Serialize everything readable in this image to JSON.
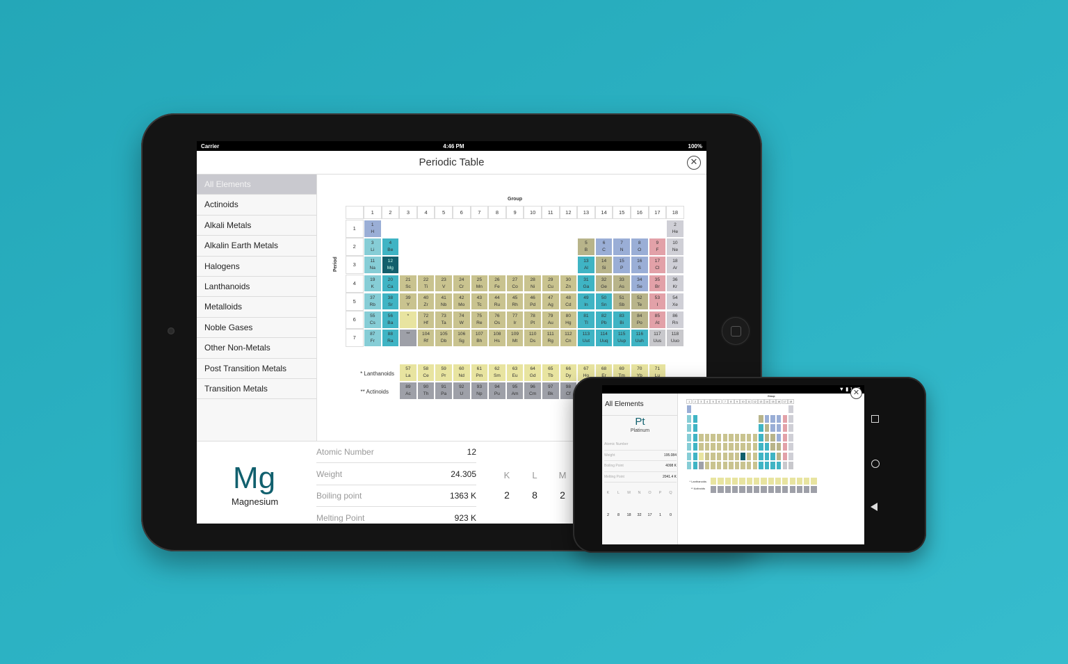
{
  "tablet": {
    "status": {
      "carrier": "Carrier",
      "time": "4:46 PM",
      "battery": "100%"
    },
    "title": "Periodic Table",
    "sidebar": [
      {
        "label": "All Elements",
        "active": true
      },
      {
        "label": "Actinoids"
      },
      {
        "label": "Alkali Metals"
      },
      {
        "label": "Alkalin Earth Metals"
      },
      {
        "label": "Halogens"
      },
      {
        "label": "Lanthanoids"
      },
      {
        "label": "Metalloids"
      },
      {
        "label": "Noble Gases"
      },
      {
        "label": "Other Non-Metals"
      },
      {
        "label": "Post Transition Metals"
      },
      {
        "label": "Transition Metals"
      }
    ],
    "table": {
      "group_label": "Group",
      "period_label": "Period",
      "lanthanoids_label": "* Lanthanoids",
      "actinoids_label": "** Actinoids",
      "groups": [
        "1",
        "2",
        "3",
        "4",
        "5",
        "6",
        "7",
        "8",
        "9",
        "10",
        "11",
        "12",
        "13",
        "14",
        "15",
        "16",
        "17",
        "18"
      ],
      "periods": [
        "1",
        "2",
        "3",
        "4",
        "5",
        "6",
        "7"
      ]
    },
    "selected": {
      "symbol": "Mg",
      "name": "Magnesium",
      "props": [
        {
          "label": "Atomic Number",
          "value": "12"
        },
        {
          "label": "Weight",
          "value": "24.305"
        },
        {
          "label": "Boiling point",
          "value": "1363 K"
        },
        {
          "label": "Melting Point",
          "value": "923 K"
        }
      ],
      "shells": [
        {
          "k": "K",
          "v": "2"
        },
        {
          "k": "L",
          "v": "8"
        },
        {
          "k": "M",
          "v": "2"
        }
      ]
    }
  },
  "phone": {
    "status_time": "1:07",
    "sidebar_title": "All Elements",
    "group_label": "Group",
    "lanthanoids_label": "* Lanthanoids",
    "actinoids_label": "** Actinoids",
    "selected": {
      "symbol": "Pt",
      "name": "Platinum",
      "props": [
        {
          "label": "Atomic Number",
          "value": ""
        },
        {
          "label": "Weight",
          "value": "195.084"
        },
        {
          "label": "Boiling Point",
          "value": "4098 K"
        },
        {
          "label": "Melting Point",
          "value": "2041.4 K"
        }
      ],
      "shells": [
        {
          "k": "K",
          "v": "2"
        },
        {
          "k": "L",
          "v": "8"
        },
        {
          "k": "M",
          "v": "18"
        },
        {
          "k": "N",
          "v": "32"
        },
        {
          "k": "O",
          "v": "17"
        },
        {
          "k": "P",
          "v": "1"
        },
        {
          "k": "Q",
          "v": "0"
        }
      ]
    }
  },
  "colors": {
    "alkali": "#86cdd6",
    "alkaline": "#3fb4c4",
    "transition": "#c9c38f",
    "post_transition": "#3fb4c4",
    "metalloid": "#b8b48a",
    "nonmetal": "#9aaed6",
    "halogen": "#e2a1a8",
    "noble": "#cfcfd6",
    "lanthanoid": "#e8e4a0",
    "actinoid": "#9ea0a8",
    "unknown": "#c8c8cc",
    "selected": "#125f6c",
    "hydrogen": "#9aaed6"
  },
  "elements": [
    [
      "1",
      "H",
      "hydrogen"
    ],
    [
      "2",
      "He",
      "noble"
    ],
    [
      "3",
      "Li",
      "alkali"
    ],
    [
      "4",
      "Be",
      "alkaline"
    ],
    [
      "5",
      "B",
      "metalloid"
    ],
    [
      "6",
      "C",
      "nonmetal"
    ],
    [
      "7",
      "N",
      "nonmetal"
    ],
    [
      "8",
      "O",
      "nonmetal"
    ],
    [
      "9",
      "F",
      "halogen"
    ],
    [
      "10",
      "Ne",
      "noble"
    ],
    [
      "11",
      "Na",
      "alkali"
    ],
    [
      "12",
      "Mg",
      "selected"
    ],
    [
      "13",
      "Al",
      "post_transition"
    ],
    [
      "14",
      "Si",
      "metalloid"
    ],
    [
      "15",
      "P",
      "nonmetal"
    ],
    [
      "16",
      "S",
      "nonmetal"
    ],
    [
      "17",
      "Cl",
      "halogen"
    ],
    [
      "18",
      "Ar",
      "noble"
    ],
    [
      "19",
      "K",
      "alkali"
    ],
    [
      "20",
      "Ca",
      "alkaline"
    ],
    [
      "21",
      "Sc",
      "transition"
    ],
    [
      "22",
      "Ti",
      "transition"
    ],
    [
      "23",
      "V",
      "transition"
    ],
    [
      "24",
      "Cr",
      "transition"
    ],
    [
      "25",
      "Mn",
      "transition"
    ],
    [
      "26",
      "Fe",
      "transition"
    ],
    [
      "27",
      "Co",
      "transition"
    ],
    [
      "28",
      "Ni",
      "transition"
    ],
    [
      "29",
      "Cu",
      "transition"
    ],
    [
      "30",
      "Zn",
      "transition"
    ],
    [
      "31",
      "Ga",
      "post_transition"
    ],
    [
      "32",
      "Ge",
      "metalloid"
    ],
    [
      "33",
      "As",
      "metalloid"
    ],
    [
      "34",
      "Se",
      "nonmetal"
    ],
    [
      "35",
      "Br",
      "halogen"
    ],
    [
      "36",
      "Kr",
      "noble"
    ],
    [
      "37",
      "Rb",
      "alkali"
    ],
    [
      "38",
      "Sr",
      "alkaline"
    ],
    [
      "39",
      "Y",
      "transition"
    ],
    [
      "40",
      "Zr",
      "transition"
    ],
    [
      "41",
      "Nb",
      "transition"
    ],
    [
      "42",
      "Mo",
      "transition"
    ],
    [
      "43",
      "Tc",
      "transition"
    ],
    [
      "44",
      "Ru",
      "transition"
    ],
    [
      "45",
      "Rh",
      "transition"
    ],
    [
      "46",
      "Pd",
      "transition"
    ],
    [
      "47",
      "Ag",
      "transition"
    ],
    [
      "48",
      "Cd",
      "transition"
    ],
    [
      "49",
      "In",
      "post_transition"
    ],
    [
      "50",
      "Sn",
      "post_transition"
    ],
    [
      "51",
      "Sb",
      "metalloid"
    ],
    [
      "52",
      "Te",
      "metalloid"
    ],
    [
      "53",
      "I",
      "halogen"
    ],
    [
      "54",
      "Xe",
      "noble"
    ],
    [
      "55",
      "Cs",
      "alkali"
    ],
    [
      "56",
      "Ba",
      "alkaline"
    ],
    [
      "*",
      "",
      "lanthanoid"
    ],
    [
      "72",
      "Hf",
      "transition"
    ],
    [
      "73",
      "Ta",
      "transition"
    ],
    [
      "74",
      "W",
      "transition"
    ],
    [
      "75",
      "Re",
      "transition"
    ],
    [
      "76",
      "Os",
      "transition"
    ],
    [
      "77",
      "Ir",
      "transition"
    ],
    [
      "78",
      "Pt",
      "transition"
    ],
    [
      "79",
      "Au",
      "transition"
    ],
    [
      "80",
      "Hg",
      "transition"
    ],
    [
      "81",
      "Tl",
      "post_transition"
    ],
    [
      "82",
      "Pb",
      "post_transition"
    ],
    [
      "83",
      "Bi",
      "post_transition"
    ],
    [
      "84",
      "Po",
      "metalloid"
    ],
    [
      "85",
      "At",
      "halogen"
    ],
    [
      "86",
      "Rn",
      "noble"
    ],
    [
      "87",
      "Fr",
      "alkali"
    ],
    [
      "88",
      "Ra",
      "alkaline"
    ],
    [
      "**",
      "",
      "actinoid"
    ],
    [
      "104",
      "Rf",
      "transition"
    ],
    [
      "105",
      "Db",
      "transition"
    ],
    [
      "106",
      "Sg",
      "transition"
    ],
    [
      "107",
      "Bh",
      "transition"
    ],
    [
      "108",
      "Hs",
      "transition"
    ],
    [
      "109",
      "Mt",
      "transition"
    ],
    [
      "110",
      "Ds",
      "transition"
    ],
    [
      "111",
      "Rg",
      "transition"
    ],
    [
      "112",
      "Cn",
      "transition"
    ],
    [
      "113",
      "Uut",
      "post_transition"
    ],
    [
      "114",
      "Uuq",
      "post_transition"
    ],
    [
      "115",
      "Uup",
      "post_transition"
    ],
    [
      "116",
      "Uuh",
      "post_transition"
    ],
    [
      "117",
      "Uus",
      "unknown"
    ],
    [
      "118",
      "Uuo",
      "unknown"
    ]
  ],
  "lanthanoids": [
    [
      "57",
      "La"
    ],
    [
      "58",
      "Ce"
    ],
    [
      "59",
      "Pr"
    ],
    [
      "60",
      "Nd"
    ],
    [
      "61",
      "Pm"
    ],
    [
      "62",
      "Sm"
    ],
    [
      "63",
      "Eu"
    ],
    [
      "64",
      "Gd"
    ],
    [
      "65",
      "Tb"
    ],
    [
      "66",
      "Dy"
    ],
    [
      "67",
      "Ho"
    ],
    [
      "68",
      "Er"
    ],
    [
      "69",
      "Tm"
    ],
    [
      "70",
      "Yb"
    ],
    [
      "71",
      "Lu"
    ]
  ],
  "actinoids": [
    [
      "89",
      "Ac"
    ],
    [
      "90",
      "Th"
    ],
    [
      "91",
      "Pa"
    ],
    [
      "92",
      "U"
    ],
    [
      "93",
      "Np"
    ],
    [
      "94",
      "Pu"
    ],
    [
      "95",
      "Am"
    ],
    [
      "96",
      "Cm"
    ],
    [
      "97",
      "Bk"
    ],
    [
      "98",
      "Cf"
    ],
    [
      "99",
      "Es"
    ],
    [
      "100",
      "Fm"
    ],
    [
      "101",
      "Md"
    ],
    [
      "102",
      "No"
    ],
    [
      "103",
      "Lr"
    ]
  ]
}
